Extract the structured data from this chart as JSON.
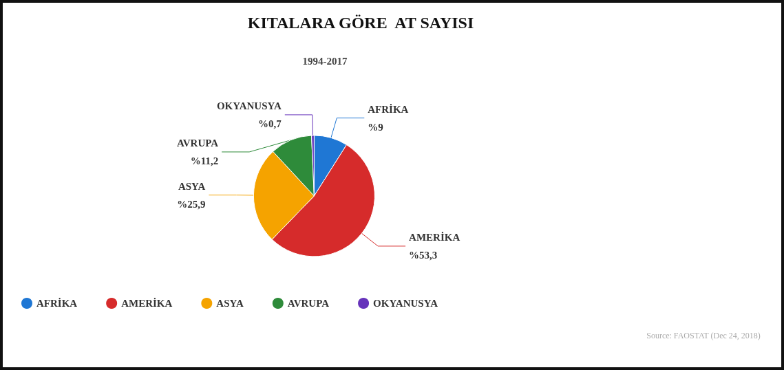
{
  "chart_data": {
    "type": "pie",
    "title": "KITALARA GÖRE  AT SAYISI",
    "subtitle": "1994-2017",
    "categories": [
      "AFRİKA",
      "AMERİKA",
      "ASYA",
      "AVRUPA",
      "OKYANUSYA"
    ],
    "values": [
      9,
      53.3,
      25.9,
      11.2,
      0.7
    ],
    "value_labels": [
      "%9",
      "%53,3",
      "%25,9",
      "%11,2",
      "%0,7"
    ],
    "colors": [
      "#1f77d4",
      "#d62b2b",
      "#f5a300",
      "#2e8b3a",
      "#6633bb"
    ],
    "legend": "bottom left",
    "annotations": [
      "Source: FAOSTAT (Dec 24, 2018)"
    ]
  }
}
